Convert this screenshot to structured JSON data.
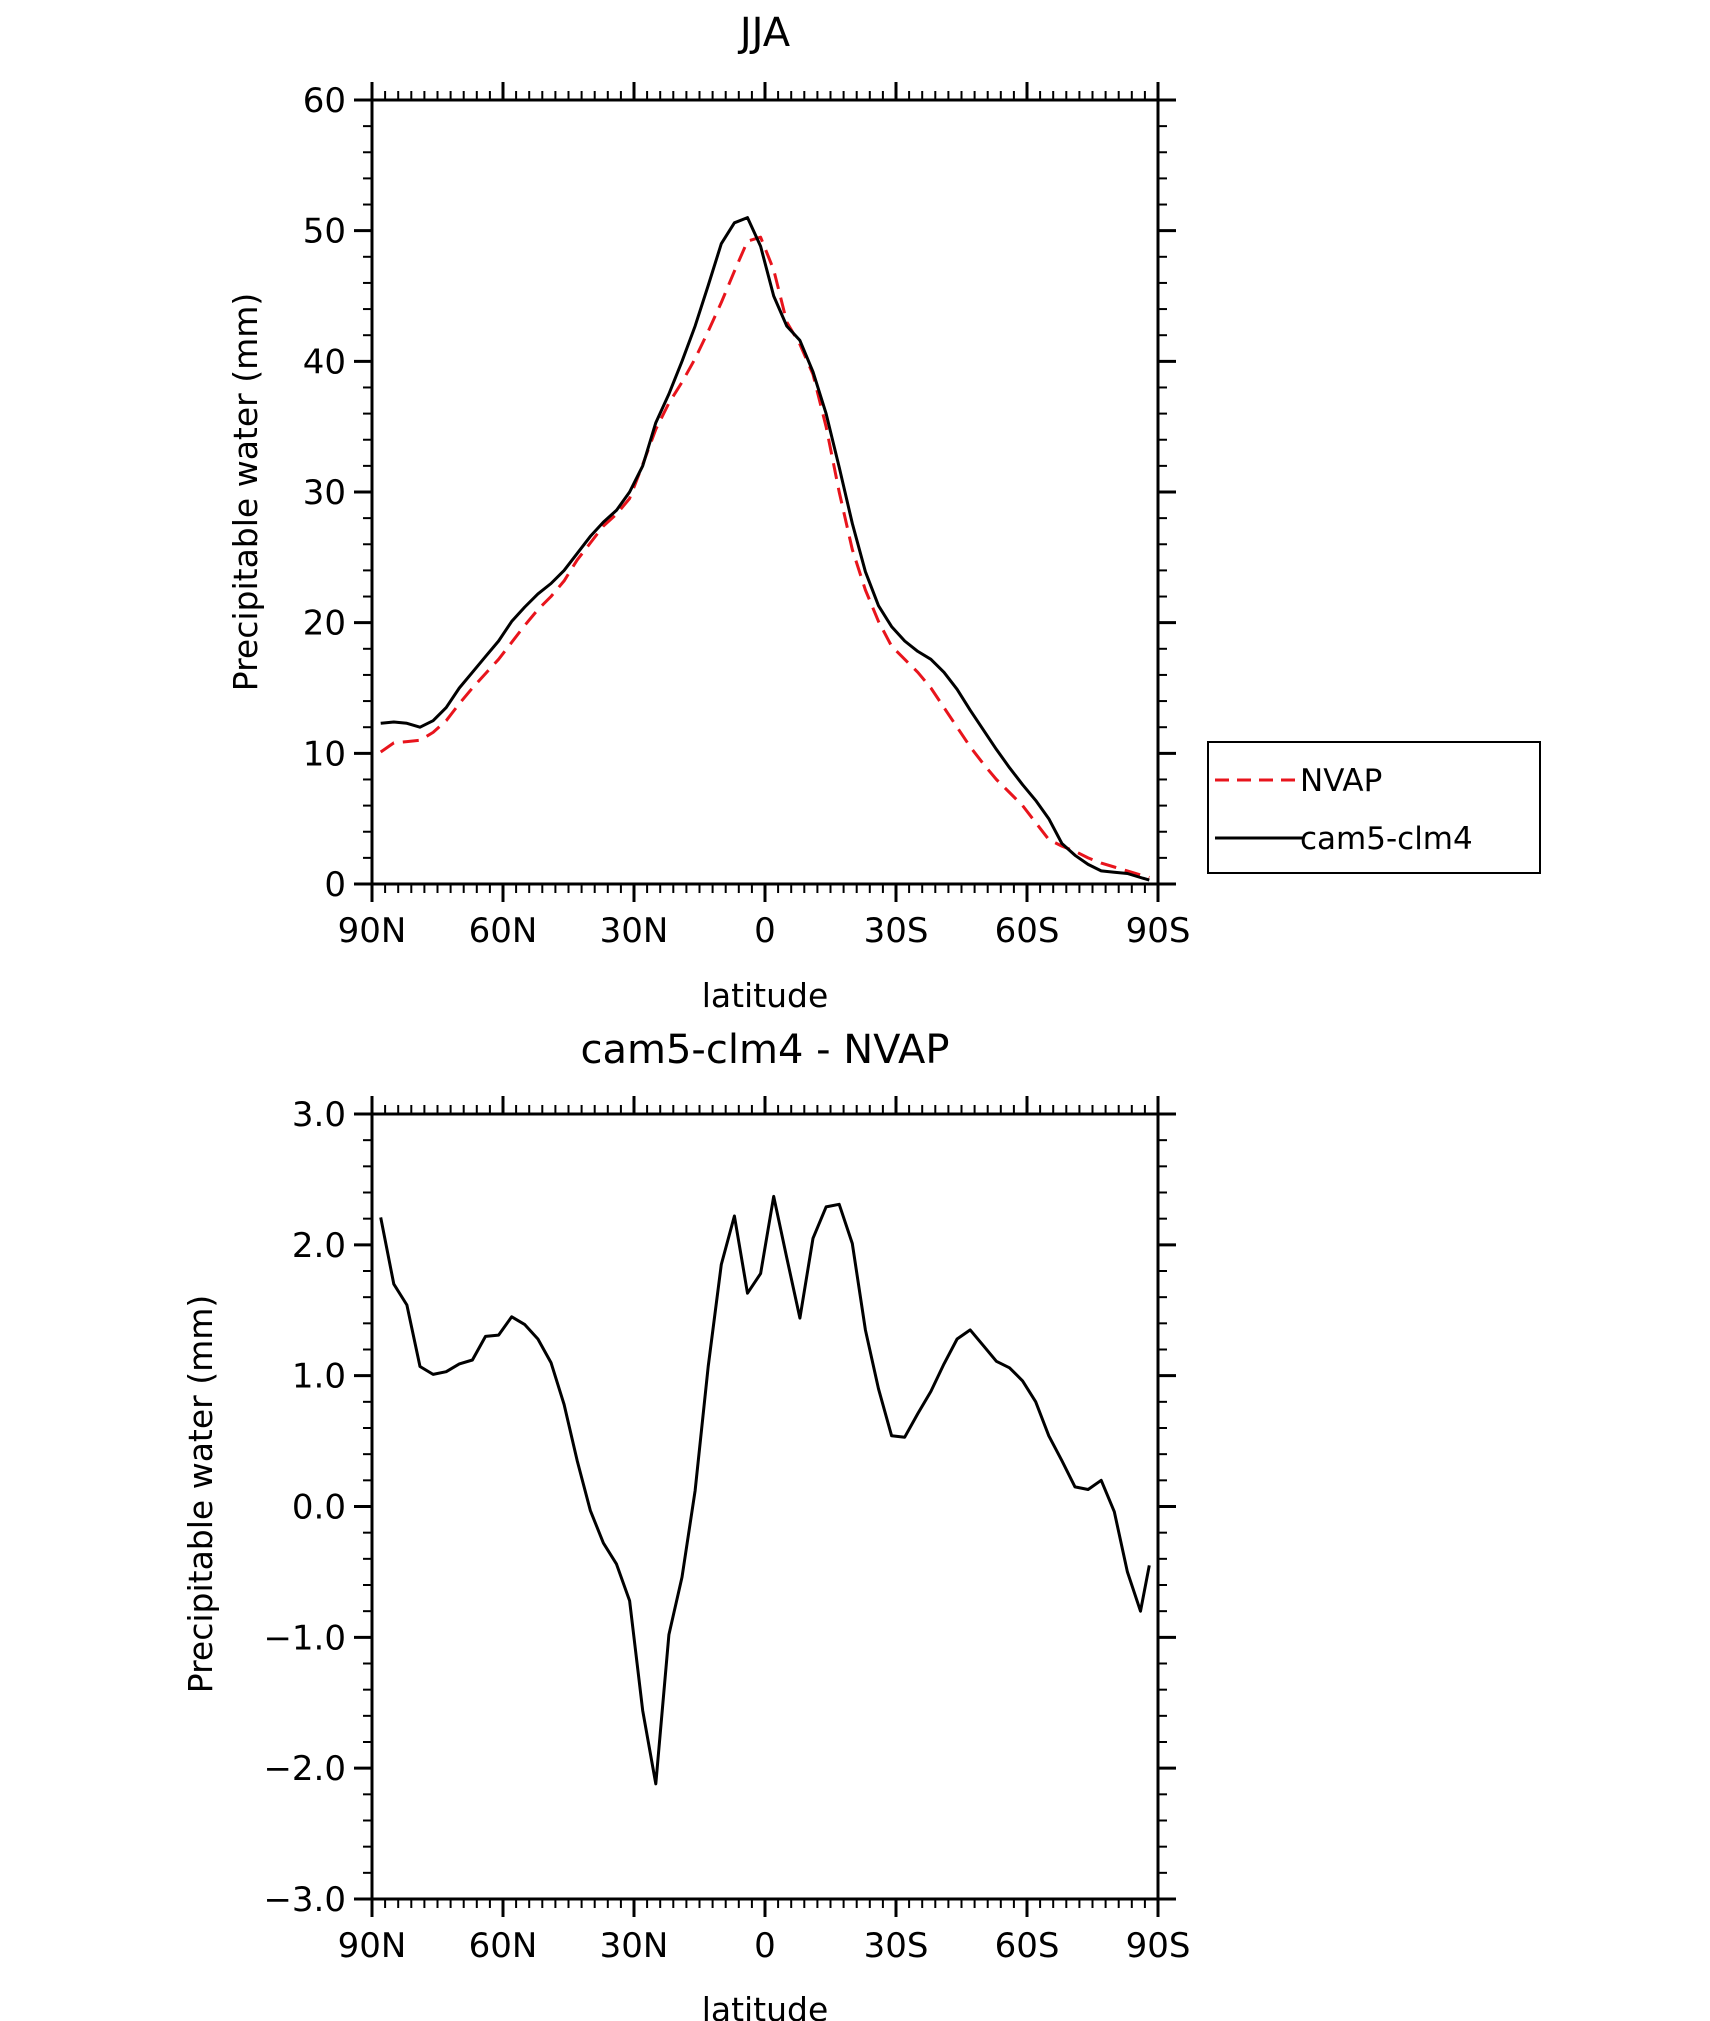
{
  "chart_data": [
    {
      "type": "line",
      "title": "JJA",
      "xlabel": "latitude",
      "ylabel": "Precipitable water (mm)",
      "xlim": [
        90,
        -90
      ],
      "ylim": [
        0,
        60
      ],
      "x_ticks": [
        {
          "value": 90,
          "label": "90N"
        },
        {
          "value": 60,
          "label": "60N"
        },
        {
          "value": 30,
          "label": "30N"
        },
        {
          "value": 0,
          "label": "0"
        },
        {
          "value": -30,
          "label": "30S"
        },
        {
          "value": -60,
          "label": "60S"
        },
        {
          "value": -90,
          "label": "90S"
        }
      ],
      "y_ticks": [
        {
          "value": 0,
          "label": "0"
        },
        {
          "value": 10,
          "label": "10"
        },
        {
          "value": 20,
          "label": "20"
        },
        {
          "value": 30,
          "label": "30"
        },
        {
          "value": 40,
          "label": "40"
        },
        {
          "value": 50,
          "label": "50"
        },
        {
          "value": 60,
          "label": "60"
        }
      ],
      "legend_position": "right",
      "series": [
        {
          "name": "NVAP",
          "color": "#e8141c",
          "dash": "dashed",
          "x": [
            88,
            85,
            82,
            79,
            76,
            73,
            70,
            67,
            64,
            61,
            58,
            55,
            52,
            49,
            46,
            43,
            40,
            37,
            34,
            31,
            28,
            25,
            22,
            19,
            16,
            13,
            10,
            7,
            4,
            1,
            -2,
            -5,
            -8,
            -11,
            -14,
            -17,
            -20,
            -23,
            -26,
            -29,
            -32,
            -35,
            -38,
            -41,
            -44,
            -47,
            -50,
            -53,
            -56,
            -59,
            -62,
            -65,
            -68,
            -71,
            -74,
            -77,
            -80,
            -83,
            -86,
            -88
          ],
          "y": [
            10.1,
            10.8,
            10.9,
            11.0,
            11.6,
            12.5,
            13.8,
            15.0,
            16.1,
            17.2,
            18.5,
            19.8,
            21.0,
            22.0,
            23.2,
            24.8,
            26.1,
            27.4,
            28.3,
            29.5,
            32.1,
            34.8,
            36.8,
            38.4,
            40.2,
            42.3,
            44.5,
            46.9,
            49.2,
            49.5,
            47.0,
            43.0,
            41.3,
            39.0,
            35.0,
            30.0,
            25.6,
            22.5,
            20.1,
            18.2,
            17.2,
            16.2,
            15.0,
            13.5,
            12.0,
            10.5,
            9.2,
            8.0,
            7.0,
            6.0,
            4.7,
            3.4,
            2.9,
            2.5,
            2.0,
            1.6,
            1.3,
            1.0,
            0.7,
            0.5
          ]
        },
        {
          "name": "cam5-clm4",
          "color": "#000000",
          "dash": "solid",
          "x": [
            88,
            85,
            82,
            79,
            76,
            73,
            70,
            67,
            64,
            61,
            58,
            55,
            52,
            49,
            46,
            43,
            40,
            37,
            34,
            31,
            28,
            25,
            22,
            19,
            16,
            13,
            10,
            7,
            4,
            1,
            -2,
            -5,
            -8,
            -11,
            -14,
            -17,
            -20,
            -23,
            -26,
            -29,
            -32,
            -35,
            -38,
            -41,
            -44,
            -47,
            -50,
            -53,
            -56,
            -59,
            -62,
            -65,
            -68,
            -71,
            -74,
            -77,
            -80,
            -83,
            -86,
            -88
          ],
          "y": [
            12.3,
            12.4,
            12.3,
            12.0,
            12.5,
            13.5,
            15.0,
            16.2,
            17.4,
            18.6,
            20.1,
            21.2,
            22.2,
            23.0,
            24.0,
            25.3,
            26.6,
            27.7,
            28.6,
            30.0,
            32.0,
            35.3,
            37.5,
            40.0,
            42.7,
            45.8,
            49.0,
            50.6,
            51.0,
            48.8,
            45.0,
            42.7,
            41.6,
            39.2,
            36.0,
            31.9,
            27.6,
            23.9,
            21.3,
            19.7,
            18.6,
            17.8,
            17.2,
            16.2,
            14.9,
            13.3,
            11.8,
            10.3,
            8.9,
            7.6,
            6.4,
            5.0,
            3.1,
            2.2,
            1.5,
            1.0,
            0.9,
            0.8,
            0.5,
            0.3
          ]
        }
      ]
    },
    {
      "type": "line",
      "title": "cam5-clm4 - NVAP",
      "xlabel": "latitude",
      "ylabel": "Precipitable water (mm)",
      "xlim": [
        90,
        -90
      ],
      "ylim": [
        -3.0,
        3.0
      ],
      "x_ticks": [
        {
          "value": 90,
          "label": "90N"
        },
        {
          "value": 60,
          "label": "60N"
        },
        {
          "value": 30,
          "label": "30N"
        },
        {
          "value": 0,
          "label": "0"
        },
        {
          "value": -30,
          "label": "30S"
        },
        {
          "value": -60,
          "label": "60S"
        },
        {
          "value": -90,
          "label": "90S"
        }
      ],
      "y_ticks": [
        {
          "value": -3.0,
          "label": "-3.0"
        },
        {
          "value": -2.0,
          "label": "-2.0"
        },
        {
          "value": -1.0,
          "label": "-1.0"
        },
        {
          "value": 0.0,
          "label": "0.0"
        },
        {
          "value": 1.0,
          "label": "1.0"
        },
        {
          "value": 2.0,
          "label": "2.0"
        },
        {
          "value": 3.0,
          "label": "3.0"
        }
      ],
      "series": [
        {
          "color": "#000000",
          "dash": "solid",
          "x": [
            88,
            85,
            82,
            79,
            76,
            73,
            70,
            67,
            64,
            61,
            58,
            55,
            52,
            49,
            46,
            43,
            40,
            37,
            34,
            31,
            28,
            25,
            22,
            19,
            16,
            13,
            10,
            7,
            4,
            1,
            -2,
            -5,
            -8,
            -11,
            -14,
            -17,
            -20,
            -23,
            -26,
            -29,
            -32,
            -35,
            -38,
            -41,
            -44,
            -47,
            -50,
            -53,
            -56,
            -59,
            -62,
            -65,
            -68,
            -71,
            -74,
            -77,
            -80,
            -83,
            -86,
            -88
          ],
          "y": [
            2.21,
            1.7,
            1.54,
            1.07,
            1.01,
            1.03,
            1.09,
            1.12,
            1.3,
            1.31,
            1.45,
            1.39,
            1.28,
            1.1,
            0.78,
            0.35,
            -0.03,
            -0.28,
            -0.44,
            -0.72,
            -1.56,
            -2.12,
            -0.98,
            -0.54,
            0.12,
            1.07,
            1.85,
            2.22,
            1.63,
            1.78,
            2.37,
            1.9,
            1.44,
            2.05,
            2.29,
            2.31,
            2.01,
            1.35,
            0.9,
            0.54,
            0.53,
            0.71,
            0.88,
            1.09,
            1.28,
            1.35,
            1.23,
            1.11,
            1.06,
            0.96,
            0.8,
            0.54,
            0.35,
            0.15,
            0.13,
            0.2,
            -0.04,
            -0.5,
            -0.8,
            -0.45
          ]
        }
      ]
    }
  ],
  "legend": {
    "items": [
      {
        "label": "NVAP",
        "color": "#e8141c",
        "dash": "dashed"
      },
      {
        "label": "cam5-clm4",
        "color": "#000000",
        "dash": "solid"
      }
    ]
  }
}
